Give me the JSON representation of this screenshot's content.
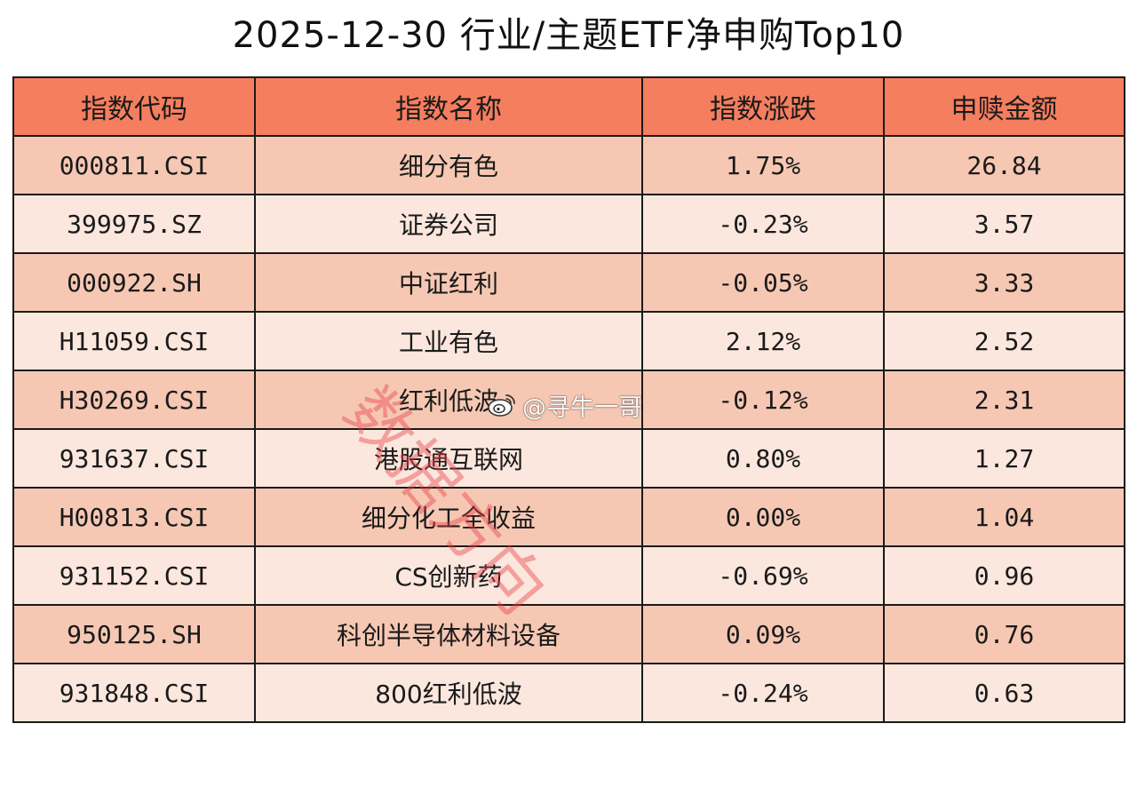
{
  "title": "2025-12-30 行业/主题ETF净申购Top10",
  "table": {
    "headers": [
      "指数代码",
      "指数名称",
      "指数涨跌",
      "申赎金额"
    ],
    "rows": [
      {
        "code": "000811.CSI",
        "name": "细分有色",
        "change": "1.75%",
        "amount": "26.84"
      },
      {
        "code": "399975.SZ",
        "name": "证券公司",
        "change": "-0.23%",
        "amount": "3.57"
      },
      {
        "code": "000922.SH",
        "name": "中证红利",
        "change": "-0.05%",
        "amount": "3.33"
      },
      {
        "code": "H11059.CSI",
        "name": "工业有色",
        "change": "2.12%",
        "amount": "2.52"
      },
      {
        "code": "H30269.CSI",
        "name": "红利低波",
        "change": "-0.12%",
        "amount": "2.31"
      },
      {
        "code": "931637.CSI",
        "name": "港股通互联网",
        "change": "0.80%",
        "amount": "1.27"
      },
      {
        "code": "H00813.CSI",
        "name": "细分化工全收益",
        "change": "0.00%",
        "amount": "1.04"
      },
      {
        "code": "931152.CSI",
        "name": "CS创新药",
        "change": "-0.69%",
        "amount": "0.96"
      },
      {
        "code": "950125.SH",
        "name": "科创半导体材料设备",
        "change": "0.09%",
        "amount": "0.76"
      },
      {
        "code": "931848.CSI",
        "name": "800红利低波",
        "change": "-0.24%",
        "amount": "0.63"
      }
    ]
  },
  "watermark": {
    "text": "数据方向",
    "credit": "@寻牛一哥",
    "icon": "weibo-icon"
  },
  "colors": {
    "header_bg": "#f57e5f",
    "row_dark_bg": "#f6c8b3",
    "row_light_bg": "#fbe7dd",
    "border": "#1a1a1a",
    "watermark": "#e83c46"
  }
}
